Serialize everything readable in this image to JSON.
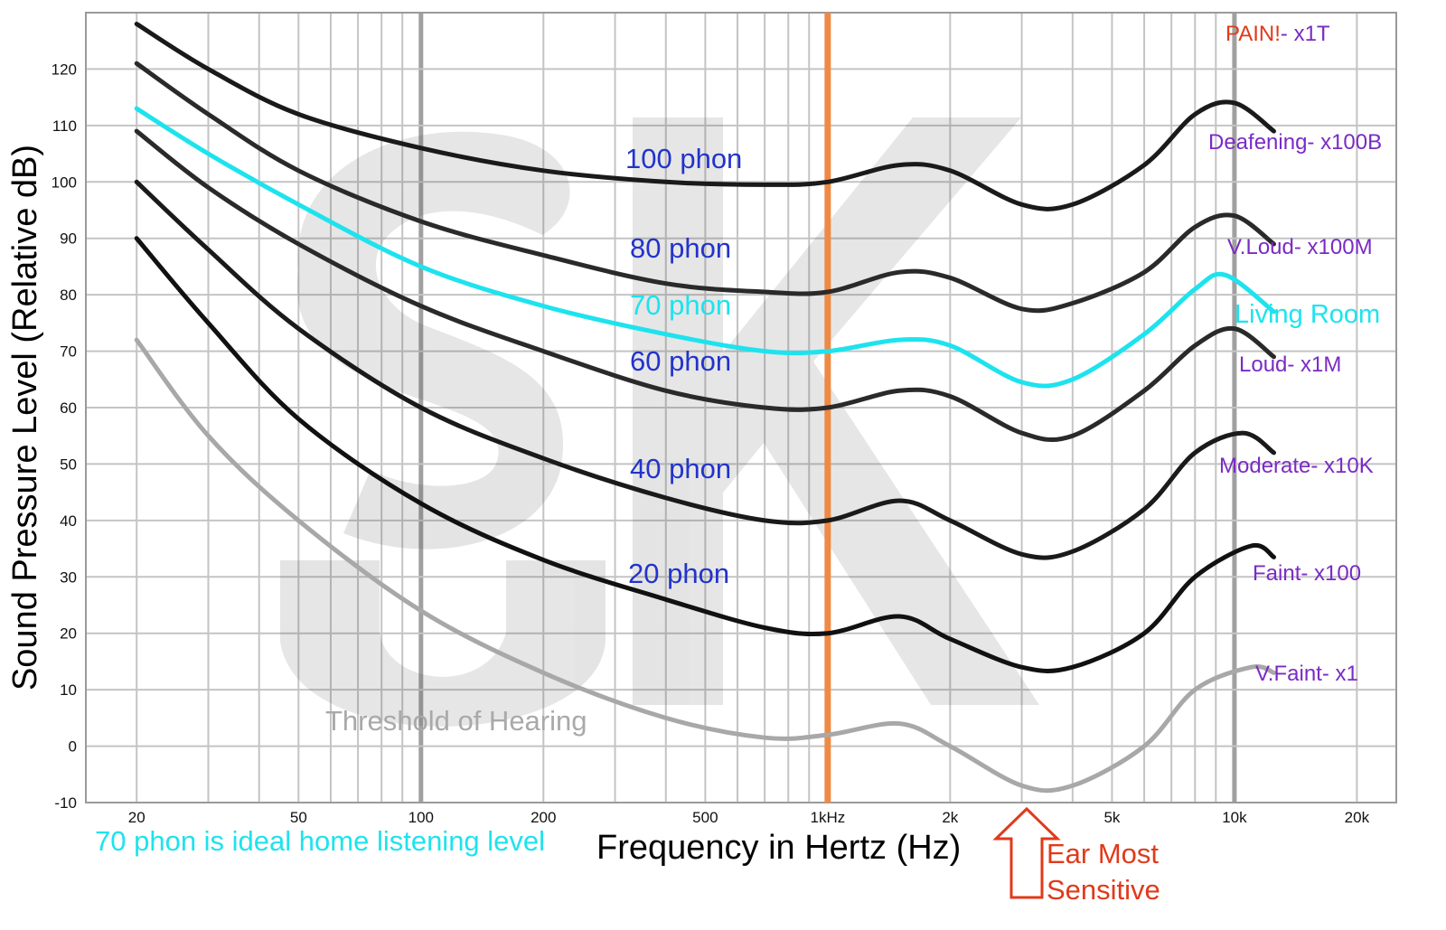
{
  "chart_data": {
    "type": "line",
    "title": "",
    "xlabel": "Frequency in Hertz (Hz)",
    "ylabel": "Sound Pressure Level (Relative dB)",
    "x_scale": "log",
    "xlim": [
      15,
      25000
    ],
    "ylim": [
      -10,
      130
    ],
    "grid": true,
    "x_tick_labels": [
      {
        "x": 20,
        "label": "20"
      },
      {
        "x": 50,
        "label": "50"
      },
      {
        "x": 100,
        "label": "100"
      },
      {
        "x": 200,
        "label": "200"
      },
      {
        "x": 500,
        "label": "500"
      },
      {
        "x": 1000,
        "label": "1kHz"
      },
      {
        "x": 2000,
        "label": "2k"
      },
      {
        "x": 5000,
        "label": "5k"
      },
      {
        "x": 10000,
        "label": "10k"
      },
      {
        "x": 20000,
        "label": "20k"
      }
    ],
    "y_ticks": [
      -10,
      0,
      10,
      20,
      30,
      40,
      50,
      60,
      70,
      80,
      90,
      100,
      110,
      120
    ],
    "highlight_frequency": 1000,
    "series": [
      {
        "name": "100 phon",
        "color": "#1a1a1a",
        "x": [
          20,
          30,
          50,
          100,
          200,
          400,
          700,
          1000,
          1500,
          2000,
          3000,
          4000,
          6000,
          8000,
          10000,
          12500
        ],
        "y": [
          128,
          120,
          112,
          106,
          102,
          100,
          99.5,
          100,
          103,
          102,
          96,
          96,
          103,
          112,
          114,
          109
        ]
      },
      {
        "name": "80 phon",
        "color": "#2a2a2a",
        "x": [
          20,
          30,
          50,
          100,
          200,
          400,
          700,
          1000,
          1500,
          2000,
          3000,
          4000,
          6000,
          8000,
          10000,
          12500
        ],
        "y": [
          121,
          112,
          102,
          93,
          87,
          82,
          80.5,
          80.5,
          84,
          83,
          77.5,
          78.5,
          84,
          92,
          94,
          89
        ]
      },
      {
        "name": "70 phon",
        "color": "#1de3ee",
        "x": [
          20,
          30,
          50,
          100,
          200,
          400,
          700,
          1000,
          1500,
          2000,
          3000,
          4000,
          6000,
          8000,
          9500,
          12500
        ],
        "y": [
          113,
          105,
          96,
          85,
          78,
          73,
          70,
          70,
          72,
          71,
          64.5,
          65,
          73,
          81,
          83.5,
          77
        ]
      },
      {
        "name": "60 phon",
        "color": "#2a2a2a",
        "x": [
          20,
          30,
          50,
          100,
          200,
          400,
          700,
          1000,
          1500,
          2000,
          3000,
          4000,
          6000,
          8000,
          10000,
          12500
        ],
        "y": [
          109,
          99,
          89,
          78,
          70,
          63,
          60,
          60,
          63,
          62,
          55.5,
          55,
          63,
          71,
          74,
          69
        ]
      },
      {
        "name": "40 phon",
        "color": "#1a1a1a",
        "x": [
          20,
          30,
          50,
          100,
          200,
          400,
          700,
          1000,
          1500,
          2000,
          3000,
          4000,
          6000,
          8000,
          10500,
          12500
        ],
        "y": [
          100,
          88,
          74,
          60,
          51,
          44,
          40,
          40,
          43.5,
          40,
          34,
          34.5,
          42,
          52,
          55.5,
          52
        ]
      },
      {
        "name": "20 phon",
        "color": "#111111",
        "x": [
          20,
          30,
          50,
          100,
          200,
          400,
          700,
          1000,
          1500,
          2000,
          3000,
          4000,
          6000,
          8000,
          11000,
          12500
        ],
        "y": [
          90,
          75,
          58,
          43,
          33,
          26,
          21,
          20,
          23,
          19,
          14,
          14,
          20,
          30,
          35.5,
          33.5
        ]
      },
      {
        "name": "Threshold of Hearing",
        "color": "#a8a8a8",
        "x": [
          20,
          30,
          50,
          100,
          200,
          400,
          700,
          1000,
          1500,
          2000,
          3000,
          4000,
          6000,
          8000,
          11000,
          12500
        ],
        "y": [
          72,
          55,
          40,
          24,
          13,
          5,
          1.5,
          2,
          4,
          0,
          -7,
          -7,
          0,
          10,
          14,
          13
        ]
      }
    ],
    "annotations": {
      "phon_labels": [
        "100 phon",
        "80 phon",
        "70 phon",
        "60 phon",
        "40 phon",
        "20 phon"
      ],
      "threshold_label": "Threshold of Hearing",
      "right_labels": [
        {
          "text": "PAIN!- x1T",
          "color": "#e03a1a"
        },
        {
          "text": "Deafening- x100B",
          "color": "#7a2bc4"
        },
        {
          "text": "V.Loud- x100M",
          "color": "#7a2bc4"
        },
        {
          "text": "Living Room",
          "color": "#1de3ee"
        },
        {
          "text": "Loud- x1M",
          "color": "#7a2bc4"
        },
        {
          "text": "Moderate- x10K",
          "color": "#7a2bc4"
        },
        {
          "text": "Faint- x100",
          "color": "#7a2bc4"
        },
        {
          "text": "V.Faint- x1",
          "color": "#7a2bc4"
        }
      ],
      "note": "70 phon is ideal home listening level",
      "sensitive_label_line1": "Ear Most",
      "sensitive_label_line2": "Sensitive"
    }
  },
  "colors": {
    "pain_red": "#e03a1a",
    "pain_purple": "#7a2bc4",
    "highlight_orange": "#ee8a44",
    "arrow_red": "#e03a1a",
    "note_cyan": "#1de3ee",
    "phon_blue": "#2233cc"
  }
}
